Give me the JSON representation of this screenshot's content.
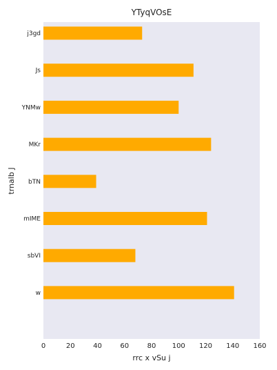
{
  "chart_data": {
    "type": "bar",
    "orientation": "horizontal",
    "title": "YTyqVOsE",
    "xlabel": "rrc x vSu j",
    "ylabel": "trnalb J",
    "categories": [
      "j3gd",
      "Js",
      "YNMw",
      "MKr",
      "bTN",
      "mIME",
      "sbVI",
      "w"
    ],
    "values": [
      73,
      111,
      100,
      124,
      39,
      121,
      68,
      141
    ],
    "xlim": [
      0,
      160
    ],
    "xticks": [
      0,
      20,
      40,
      60,
      80,
      100,
      120,
      140,
      160
    ],
    "grid": false,
    "colors": {
      "bar": "#FFAA00",
      "plot_background": "#E8E8F2"
    }
  }
}
